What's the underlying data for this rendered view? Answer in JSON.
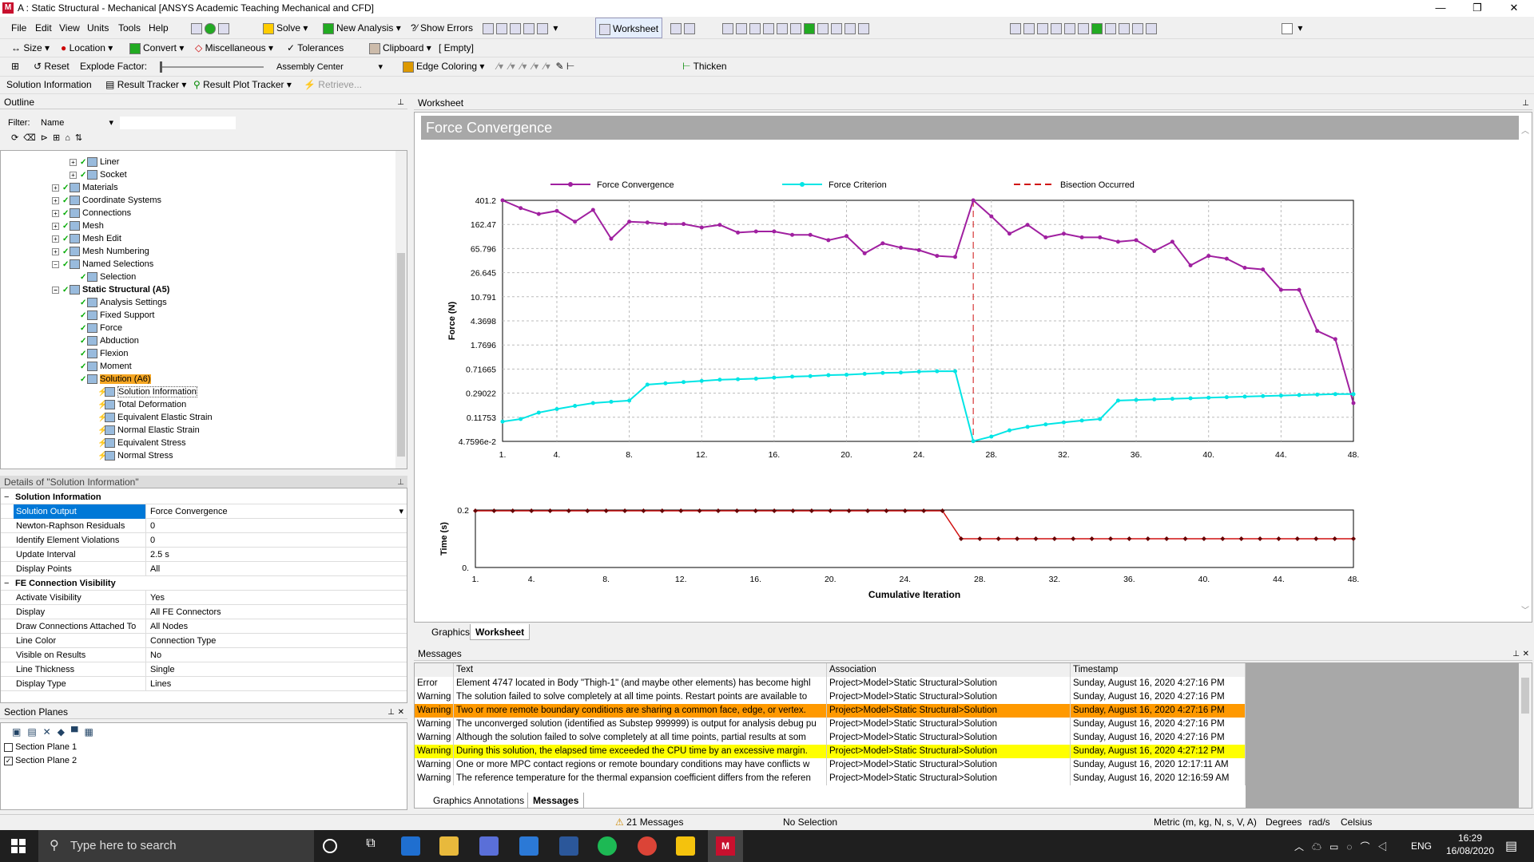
{
  "window": {
    "title": "A : Static Structural - Mechanical [ANSYS Academic Teaching Mechanical and CFD]"
  },
  "menu": [
    "File",
    "Edit",
    "View",
    "Units",
    "Tools",
    "Help"
  ],
  "toolbar1": {
    "solve": "Solve",
    "new_analysis": "New Analysis",
    "show_errors": "Show Errors",
    "worksheet": "Worksheet"
  },
  "toolbar2": {
    "size": "Size",
    "location": "Location",
    "convert": "Convert",
    "misc": "Miscellaneous",
    "tolerances": "Tolerances",
    "clipboard": "Clipboard",
    "clipboard_value": "[ Empty]"
  },
  "toolbar3": {
    "reset": "Reset",
    "explode": "Explode Factor:",
    "assembly": "Assembly Center",
    "edge": "Edge Coloring",
    "thicken": "Thicken"
  },
  "toolbar4": {
    "sol_info": "Solution Information",
    "result_tracker": "Result Tracker",
    "result_plot": "Result Plot Tracker",
    "retrieve": "Retrieve..."
  },
  "outline": {
    "title": "Outline",
    "filter_label": "Filter:",
    "filter_value": "Name",
    "items": [
      {
        "label": "Liner",
        "level": 3
      },
      {
        "label": "Socket",
        "level": 3
      },
      {
        "label": "Materials",
        "level": 2
      },
      {
        "label": "Coordinate Systems",
        "level": 2
      },
      {
        "label": "Connections",
        "level": 2
      },
      {
        "label": "Mesh",
        "level": 2
      },
      {
        "label": "Mesh Edit",
        "level": 2
      },
      {
        "label": "Mesh Numbering",
        "level": 2
      },
      {
        "label": "Named Selections",
        "level": 2
      },
      {
        "label": "Selection",
        "level": 3
      },
      {
        "label": "Static Structural (A5)",
        "level": 2
      },
      {
        "label": "Analysis Settings",
        "level": 3
      },
      {
        "label": "Fixed Support",
        "level": 3
      },
      {
        "label": "Force",
        "level": 3
      },
      {
        "label": "Abduction",
        "level": 3
      },
      {
        "label": "Flexion",
        "level": 3
      },
      {
        "label": "Moment",
        "level": 3
      },
      {
        "label": "Solution (A6)",
        "level": 3
      },
      {
        "label": "Solution Information",
        "level": 4
      },
      {
        "label": "Total Deformation",
        "level": 4
      },
      {
        "label": "Equivalent Elastic Strain",
        "level": 4
      },
      {
        "label": "Normal Elastic Strain",
        "level": 4
      },
      {
        "label": "Equivalent Stress",
        "level": 4
      },
      {
        "label": "Normal Stress",
        "level": 4
      }
    ]
  },
  "details": {
    "title": "Details of \"Solution Information\"",
    "group1": "Solution Information",
    "rows1": [
      {
        "k": "Solution Output",
        "v": "Force Convergence"
      },
      {
        "k": "Newton-Raphson Residuals",
        "v": "0"
      },
      {
        "k": "Identify Element Violations",
        "v": "0"
      },
      {
        "k": "Update Interval",
        "v": "2.5 s"
      },
      {
        "k": "Display Points",
        "v": "All"
      }
    ],
    "group2": "FE Connection Visibility",
    "rows2": [
      {
        "k": "Activate Visibility",
        "v": "Yes"
      },
      {
        "k": "Display",
        "v": "All FE Connectors"
      },
      {
        "k": "Draw Connections Attached To",
        "v": "All Nodes"
      },
      {
        "k": "Line Color",
        "v": "Connection Type"
      },
      {
        "k": "Visible on Results",
        "v": "No"
      },
      {
        "k": "Line Thickness",
        "v": "Single"
      },
      {
        "k": "Display Type",
        "v": "Lines"
      }
    ]
  },
  "section_planes": {
    "title": "Section Planes",
    "items": [
      "Section Plane 1",
      "Section Plane 2"
    ]
  },
  "worksheet": {
    "panel": "Worksheet",
    "title": "Force Convergence",
    "tabs": [
      "Graphics",
      "Worksheet"
    ]
  },
  "chart_data": [
    {
      "type": "line",
      "legend": [
        "Force Convergence",
        "Force Criterion",
        "Bisection Occurred"
      ],
      "ylabel": "Force (N)",
      "yscale": "log",
      "yticks": [
        "401.2",
        "162.47",
        "65.796",
        "26.645",
        "10.791",
        "4.3698",
        "1.7696",
        "0.71665",
        "0.29022",
        "0.11753",
        "4.7596e-2"
      ],
      "xticks": [
        "1.",
        "4.",
        "8.",
        "12.",
        "16.",
        "20.",
        "24.",
        "28.",
        "32.",
        "36.",
        "40.",
        "44.",
        "48."
      ],
      "xrange": [
        1,
        48
      ],
      "bisection_x": 27,
      "series": [
        {
          "name": "Force Convergence",
          "color": "#a020a0",
          "x": [
            1,
            2,
            3,
            4,
            5,
            6,
            7,
            8,
            9,
            10,
            11,
            12,
            13,
            14,
            15,
            16,
            17,
            18,
            19,
            20,
            21,
            22,
            23,
            24,
            25,
            26,
            27,
            28,
            29,
            30,
            31,
            32,
            33,
            34,
            35,
            36,
            37,
            38,
            39,
            40,
            41,
            42,
            43,
            44,
            45,
            46,
            47,
            48
          ],
          "y": [
            401,
            300,
            240,
            270,
            180,
            280,
            95,
            180,
            175,
            165,
            165,
            145,
            160,
            120,
            125,
            125,
            110,
            110,
            90,
            105,
            55,
            80,
            68,
            62,
            50,
            48,
            401,
            220,
            115,
            160,
            100,
            115,
            100,
            100,
            85,
            90,
            60,
            85,
            35,
            50,
            45,
            32,
            30,
            14,
            14,
            3,
            2.2,
            0.2
          ]
        },
        {
          "name": "Force Criterion",
          "color": "#00e5e5",
          "x": [
            1,
            2,
            3,
            4,
            5,
            6,
            7,
            8,
            9,
            10,
            11,
            12,
            13,
            14,
            15,
            16,
            17,
            18,
            19,
            20,
            21,
            22,
            23,
            24,
            25,
            26,
            27,
            28,
            29,
            30,
            31,
            32,
            33,
            34,
            35,
            36,
            37,
            38,
            39,
            40,
            41,
            42,
            43,
            44,
            45,
            46,
            47,
            48
          ],
          "y": [
            0.1,
            0.11,
            0.14,
            0.16,
            0.18,
            0.2,
            0.21,
            0.22,
            0.4,
            0.42,
            0.44,
            0.46,
            0.48,
            0.49,
            0.5,
            0.52,
            0.54,
            0.55,
            0.57,
            0.58,
            0.6,
            0.62,
            0.63,
            0.65,
            0.66,
            0.66,
            0.048,
            0.057,
            0.072,
            0.082,
            0.09,
            0.097,
            0.104,
            0.11,
            0.22,
            0.225,
            0.23,
            0.235,
            0.24,
            0.245,
            0.25,
            0.255,
            0.26,
            0.265,
            0.27,
            0.275,
            0.28,
            0.28
          ]
        }
      ]
    },
    {
      "type": "line",
      "xlabel": "Cumulative Iteration",
      "ylabel": "Time (s)",
      "yticks": [
        "0.2",
        "0."
      ],
      "ylim": [
        0,
        0.2
      ],
      "xticks": [
        "1.",
        "4.",
        "8.",
        "12.",
        "16.",
        "20.",
        "24.",
        "28.",
        "32.",
        "36.",
        "40.",
        "44.",
        "48."
      ],
      "xrange": [
        1,
        48
      ],
      "series": [
        {
          "name": "Time",
          "color": "#d01010",
          "x": [
            1,
            2,
            3,
            4,
            5,
            6,
            7,
            8,
            9,
            10,
            11,
            12,
            13,
            14,
            15,
            16,
            17,
            18,
            19,
            20,
            21,
            22,
            23,
            24,
            25,
            26,
            27,
            28,
            29,
            30,
            31,
            32,
            33,
            34,
            35,
            36,
            37,
            38,
            39,
            40,
            41,
            42,
            43,
            44,
            45,
            46,
            47,
            48
          ],
          "y": [
            0.2,
            0.2,
            0.2,
            0.2,
            0.2,
            0.2,
            0.2,
            0.2,
            0.2,
            0.2,
            0.2,
            0.2,
            0.2,
            0.2,
            0.2,
            0.2,
            0.2,
            0.2,
            0.2,
            0.2,
            0.2,
            0.2,
            0.2,
            0.2,
            0.2,
            0.2,
            0.1,
            0.1,
            0.1,
            0.1,
            0.1,
            0.1,
            0.1,
            0.1,
            0.1,
            0.1,
            0.1,
            0.1,
            0.1,
            0.1,
            0.1,
            0.1,
            0.1,
            0.1,
            0.1,
            0.1,
            0.1,
            0.1
          ]
        }
      ]
    }
  ],
  "messages": {
    "title": "Messages",
    "columns": [
      "Text",
      "Association",
      "Timestamp"
    ],
    "rows": [
      {
        "type": "Error",
        "text": "Element 4747 located in Body \"Thigh-1\" (and maybe other elements) has become highl",
        "assoc": "Project>Model>Static Structural>Solution",
        "time": "Sunday, August 16, 2020 4:27:16 PM",
        "hl": ""
      },
      {
        "type": "Warning",
        "text": "The solution failed to solve completely at all time points. Restart points are available to",
        "assoc": "Project>Model>Static Structural>Solution",
        "time": "Sunday, August 16, 2020 4:27:16 PM",
        "hl": ""
      },
      {
        "type": "Warning",
        "text": "Two or more remote boundary conditions are sharing a common face, edge, or vertex.",
        "assoc": "Project>Model>Static Structural>Solution",
        "time": "Sunday, August 16, 2020 4:27:16 PM",
        "hl": "#ff9900"
      },
      {
        "type": "Warning",
        "text": "The unconverged solution (identified as Substep 999999) is output for analysis debug pu",
        "assoc": "Project>Model>Static Structural>Solution",
        "time": "Sunday, August 16, 2020 4:27:16 PM",
        "hl": ""
      },
      {
        "type": "Warning",
        "text": "Although the solution failed to solve completely at all time points, partial results at som",
        "assoc": "Project>Model>Static Structural>Solution",
        "time": "Sunday, August 16, 2020 4:27:16 PM",
        "hl": ""
      },
      {
        "type": "Warning",
        "text": "During this solution, the elapsed time exceeded the CPU time by an excessive margin.",
        "assoc": "Project>Model>Static Structural>Solution",
        "time": "Sunday, August 16, 2020 4:27:12 PM",
        "hl": "#ffff00"
      },
      {
        "type": "Warning",
        "text": "One or more MPC contact regions or remote boundary conditions may have conflicts w",
        "assoc": "Project>Model>Static Structural>Solution",
        "time": "Sunday, August 16, 2020 12:17:11 AM",
        "hl": ""
      },
      {
        "type": "Warning",
        "text": "The reference temperature for the thermal expansion coefficient differs from the referen",
        "assoc": "Project>Model>Static Structural>Solution",
        "time": "Sunday, August 16, 2020 12:16:59 AM",
        "hl": ""
      }
    ],
    "tabs": [
      "Graphics Annotations",
      "Messages"
    ]
  },
  "status": {
    "messages": "21 Messages",
    "selection": "No Selection",
    "units": "Metric (m, kg, N, s, V, A)",
    "degrees": "Degrees",
    "rads": "rad/s",
    "celsius": "Celsius"
  },
  "taskbar": {
    "search": "Type here to search",
    "time": "16:29",
    "date": "16/08/2020",
    "lang": "ENG"
  }
}
